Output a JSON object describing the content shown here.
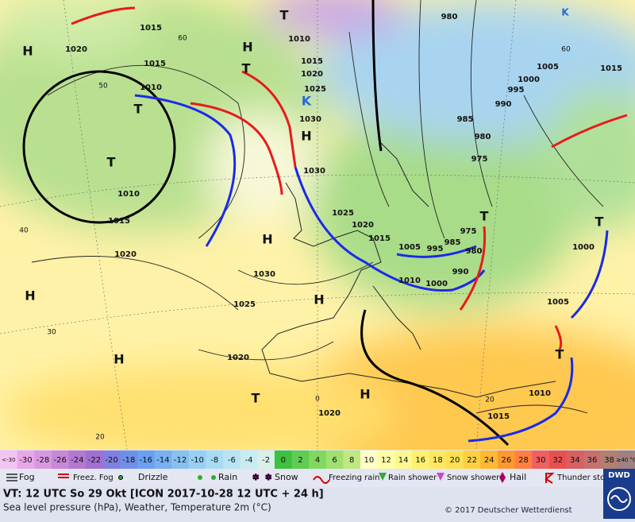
{
  "map": {
    "labels": [
      "1015",
      "1020",
      "60",
      "H",
      "1015",
      "50",
      "1010",
      "T",
      "T",
      "1010",
      "1015",
      "40",
      "1020",
      "H",
      "30",
      "H",
      "1030",
      "H",
      "1025",
      "H",
      "1020",
      "T",
      "0",
      "H",
      "1020",
      "20",
      "1015",
      "1010",
      "20",
      "T",
      "T",
      "1000",
      "1005",
      "1010",
      "1000",
      "990",
      "1005",
      "995",
      "985",
      "980",
      "975",
      "T",
      "1015",
      "1020",
      "1025",
      "1030",
      "H",
      "1030",
      "1025",
      "1020",
      "1015",
      "1010",
      "T",
      "T",
      "H",
      "K",
      "980",
      "1000",
      "995",
      "990",
      "985",
      "980",
      "975",
      "1005",
      "1015",
      "60",
      "K"
    ]
  },
  "colorbar": {
    "labels": [
      "<-30",
      "-30",
      "-28",
      "-26",
      "-24",
      "-22",
      "-20",
      "-18",
      "-16",
      "-14",
      "-12",
      "-10",
      "-8",
      "-6",
      "-4",
      "-2",
      "0",
      "2",
      "4",
      "6",
      "8",
      "10",
      "12",
      "14",
      "16",
      "18",
      "20",
      "22",
      "24",
      "26",
      "28",
      "30",
      "32",
      "34",
      "36",
      "38",
      "≥40 °C"
    ],
    "colors": [
      "#f2c4f2",
      "#e8a8e8",
      "#d898e0",
      "#c888d8",
      "#b478d0",
      "#a070d0",
      "#8080e0",
      "#7090e8",
      "#6aa0f0",
      "#78b0f0",
      "#88c0f0",
      "#98d0f4",
      "#a8dcf4",
      "#b8e4f4",
      "#c8ecf0",
      "#d8f0e8",
      "#40c040",
      "#60cc50",
      "#80d860",
      "#a0e070",
      "#c0e880",
      "#ffffc8",
      "#ffffa8",
      "#fff890",
      "#fff070",
      "#ffe860",
      "#ffe050",
      "#ffd040",
      "#ffb830",
      "#ff9830",
      "#ff8040",
      "#f06060",
      "#e85050",
      "#d86060",
      "#c87070",
      "#b08070",
      "#a08080"
    ]
  },
  "legend": [
    "Fog",
    "Freez. Fog",
    "Drizzle",
    "Rain",
    "Snow",
    "Freezing rain",
    "Rain shower",
    "Snow shower",
    "Hail",
    "Thunder storm"
  ],
  "footer": {
    "valid_time": "VT: 12 UTC So  29 Okt [ICON 2017-10-28  12 UTC + 24 h]",
    "description": "Sea level pressure (hPa), Weather, Temperature 2m (°C)",
    "copyright": "© 2017 Deutscher Wetterdienst",
    "logo": "DWD"
  }
}
